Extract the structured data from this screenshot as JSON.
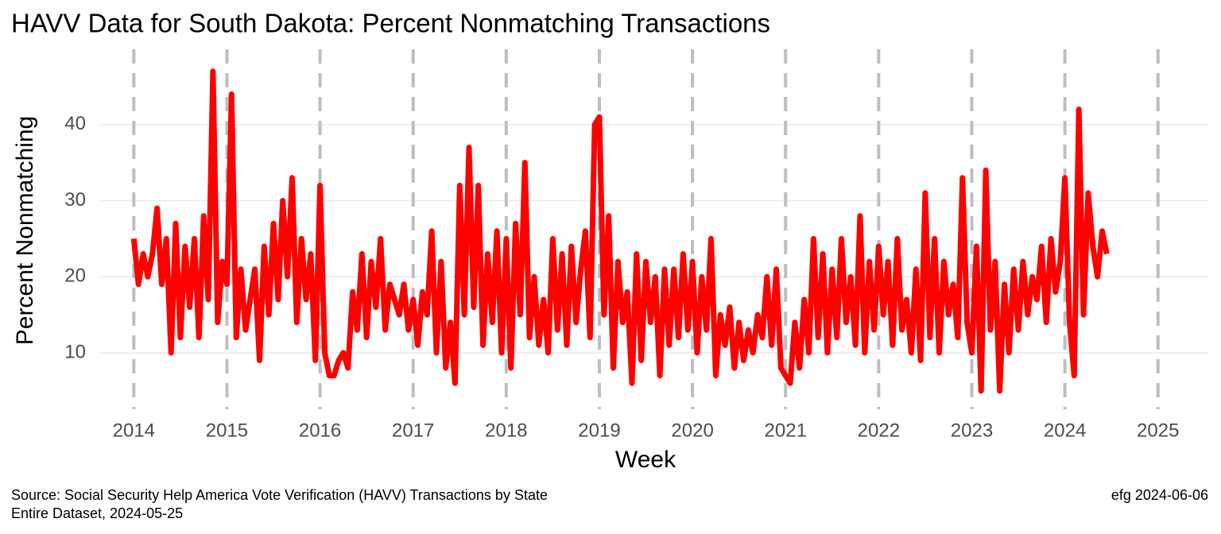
{
  "chart_data": {
    "type": "line",
    "title": "HAVV Data for South Dakota:  Percent Nonmatching Transactions",
    "xlabel": "Week",
    "ylabel": "Percent Nonmatching",
    "caption_left": [
      "Source:  Social Security Help America Vote Verification (HAVV) Transactions by State",
      "Entire Dataset, 2024-05-25"
    ],
    "caption_right": "efg 2024-06-06",
    "color": "#ff0000",
    "grid": true,
    "xlim": [
      2013.63,
      2025.54
    ],
    "ylim": [
      4.15,
      49.9
    ],
    "xticks": [
      2014,
      2015,
      2016,
      2017,
      2018,
      2019,
      2020,
      2021,
      2022,
      2023,
      2024,
      2025
    ],
    "yticks": [
      10,
      20,
      30,
      40
    ],
    "x": [
      2014,
      2014.05,
      2014.1,
      2014.15,
      2014.2,
      2014.25,
      2014.3,
      2014.35,
      2014.4,
      2014.45,
      2014.5,
      2014.55,
      2014.6,
      2014.65,
      2014.7,
      2014.75,
      2014.8,
      2014.85,
      2014.9,
      2014.95,
      2015,
      2015.05,
      2015.1,
      2015.15,
      2015.2,
      2015.25,
      2015.3,
      2015.35,
      2015.4,
      2015.45,
      2015.5,
      2015.55,
      2015.6,
      2015.65,
      2015.7,
      2015.75,
      2015.8,
      2015.85,
      2015.9,
      2015.95,
      2016,
      2016.05,
      2016.1,
      2016.15,
      2016.2,
      2016.25,
      2016.3,
      2016.35,
      2016.4,
      2016.45,
      2016.5,
      2016.55,
      2016.6,
      2016.65,
      2016.7,
      2016.75,
      2016.8,
      2016.85,
      2016.9,
      2016.95,
      2017,
      2017.05,
      2017.1,
      2017.15,
      2017.2,
      2017.25,
      2017.3,
      2017.35,
      2017.4,
      2017.45,
      2017.5,
      2017.55,
      2017.6,
      2017.65,
      2017.7,
      2017.75,
      2017.8,
      2017.85,
      2017.9,
      2017.95,
      2018,
      2018.05,
      2018.1,
      2018.15,
      2018.2,
      2018.25,
      2018.3,
      2018.35,
      2018.4,
      2018.45,
      2018.5,
      2018.55,
      2018.6,
      2018.65,
      2018.7,
      2018.75,
      2018.8,
      2018.85,
      2018.9,
      2018.95,
      2019,
      2019.05,
      2019.1,
      2019.15,
      2019.2,
      2019.25,
      2019.3,
      2019.35,
      2019.4,
      2019.45,
      2019.5,
      2019.55,
      2019.6,
      2019.65,
      2019.7,
      2019.75,
      2019.8,
      2019.85,
      2019.9,
      2019.95,
      2020,
      2020.05,
      2020.1,
      2020.15,
      2020.2,
      2020.25,
      2020.3,
      2020.35,
      2020.4,
      2020.45,
      2020.5,
      2020.55,
      2020.6,
      2020.65,
      2020.7,
      2020.75,
      2020.8,
      2020.85,
      2020.9,
      2020.95,
      2021,
      2021.05,
      2021.1,
      2021.15,
      2021.2,
      2021.25,
      2021.3,
      2021.35,
      2021.4,
      2021.45,
      2021.5,
      2021.55,
      2021.6,
      2021.65,
      2021.7,
      2021.75,
      2021.8,
      2021.85,
      2021.9,
      2021.95,
      2022,
      2022.05,
      2022.1,
      2022.15,
      2022.2,
      2022.25,
      2022.3,
      2022.35,
      2022.4,
      2022.45,
      2022.5,
      2022.55,
      2022.6,
      2022.65,
      2022.7,
      2022.75,
      2022.8,
      2022.85,
      2022.9,
      2022.95,
      2023,
      2023.05,
      2023.1,
      2023.15,
      2023.2,
      2023.25,
      2023.3,
      2023.35,
      2023.4,
      2023.45,
      2023.5,
      2023.55,
      2023.6,
      2023.65,
      2023.7,
      2023.75,
      2023.8,
      2023.85,
      2023.9,
      2023.95,
      2024,
      2024.05,
      2024.1,
      2024.15,
      2024.2,
      2024.25,
      2024.3,
      2024.35,
      2024.4,
      2024.45
    ],
    "values": [
      25,
      19,
      23,
      20,
      23,
      29,
      19,
      25,
      10,
      27,
      12,
      24,
      16,
      25,
      12,
      28,
      17,
      47,
      14,
      22,
      19,
      44,
      12,
      21,
      13,
      17,
      21,
      9,
      24,
      15,
      27,
      17,
      30,
      20,
      33,
      14,
      25,
      17,
      23,
      9,
      32,
      10,
      7,
      7,
      9,
      10,
      8,
      18,
      13,
      23,
      12,
      22,
      16,
      25,
      13,
      19,
      17,
      15,
      19,
      13,
      17,
      11,
      18,
      15,
      26,
      10,
      22,
      8,
      14,
      6,
      32,
      15,
      37,
      16,
      32,
      11,
      23,
      14,
      26,
      10,
      25,
      8,
      27,
      15,
      35,
      12,
      20,
      11,
      17,
      10,
      25,
      13,
      23,
      11,
      24,
      14,
      21,
      26,
      12,
      40,
      41,
      15,
      28,
      8,
      22,
      14,
      18,
      6,
      23,
      9,
      22,
      14,
      20,
      7,
      21,
      11,
      21,
      12,
      23,
      13,
      22,
      10,
      20,
      13,
      25,
      7,
      15,
      11,
      16,
      8,
      14,
      9,
      13,
      10,
      15,
      12,
      20,
      11,
      21,
      8,
      7,
      6,
      14,
      8,
      17,
      10,
      25,
      12,
      23,
      10,
      21,
      12,
      25,
      14,
      20,
      11,
      28,
      10,
      22,
      13,
      24,
      15,
      22,
      11,
      25,
      13,
      17,
      10,
      21,
      9,
      31,
      12,
      25,
      10,
      22,
      15,
      19,
      12,
      33,
      14,
      10,
      24,
      5,
      34,
      13,
      22,
      5,
      19,
      10,
      21,
      13,
      22,
      15,
      20,
      17,
      24,
      14,
      25,
      18,
      22,
      33,
      14,
      7,
      42,
      15,
      31,
      24,
      20,
      26,
      23
    ]
  }
}
